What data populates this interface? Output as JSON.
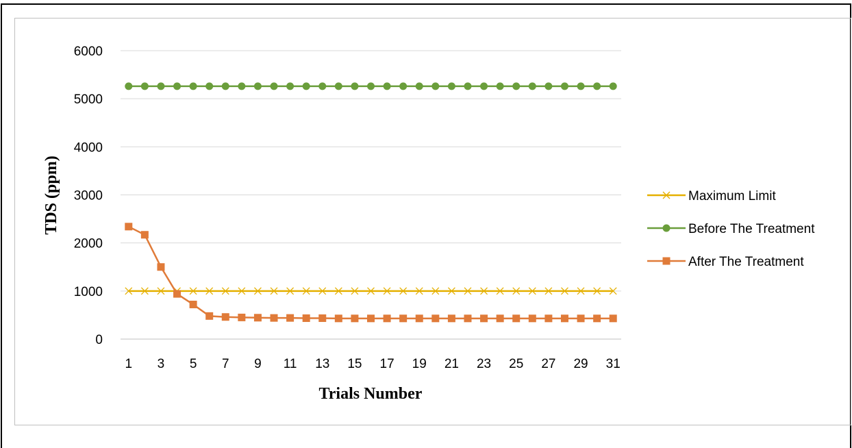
{
  "chart_data": {
    "type": "line",
    "title": "",
    "xlabel": "Trials Number",
    "ylabel": "TDS (ppm)",
    "ylim": [
      0,
      6000
    ],
    "yticks": [
      0,
      1000,
      2000,
      3000,
      4000,
      5000,
      6000
    ],
    "x": [
      1,
      2,
      3,
      4,
      5,
      6,
      7,
      8,
      9,
      10,
      11,
      12,
      13,
      14,
      15,
      16,
      17,
      18,
      19,
      20,
      21,
      22,
      23,
      24,
      25,
      26,
      27,
      28,
      29,
      30,
      31
    ],
    "xtick_labels": [
      "1",
      "3",
      "5",
      "7",
      "9",
      "11",
      "13",
      "15",
      "17",
      "19",
      "21",
      "23",
      "25",
      "27",
      "29",
      "31"
    ],
    "grid": "horizontal",
    "legend_position": "right",
    "series": [
      {
        "name": "Maximum Limit",
        "color": "#E5B000",
        "marker": "x",
        "values": [
          1000,
          1000,
          1000,
          1000,
          1000,
          1000,
          1000,
          1000,
          1000,
          1000,
          1000,
          1000,
          1000,
          1000,
          1000,
          1000,
          1000,
          1000,
          1000,
          1000,
          1000,
          1000,
          1000,
          1000,
          1000,
          1000,
          1000,
          1000,
          1000,
          1000,
          1000
        ]
      },
      {
        "name": "Before The Treatment",
        "color": "#6A9E3B",
        "marker": "circle",
        "values": [
          5260,
          5260,
          5260,
          5260,
          5260,
          5260,
          5260,
          5260,
          5260,
          5260,
          5260,
          5260,
          5260,
          5260,
          5260,
          5260,
          5260,
          5260,
          5260,
          5260,
          5260,
          5260,
          5260,
          5260,
          5260,
          5260,
          5260,
          5260,
          5260,
          5260,
          5260
        ]
      },
      {
        "name": "After The Treatment",
        "color": "#E07B39",
        "marker": "square",
        "values": [
          2340,
          2170,
          1500,
          940,
          720,
          480,
          460,
          450,
          445,
          440,
          440,
          435,
          435,
          430,
          430,
          430,
          430,
          430,
          430,
          430,
          430,
          430,
          430,
          430,
          430,
          430,
          430,
          430,
          430,
          430,
          430
        ]
      }
    ]
  }
}
